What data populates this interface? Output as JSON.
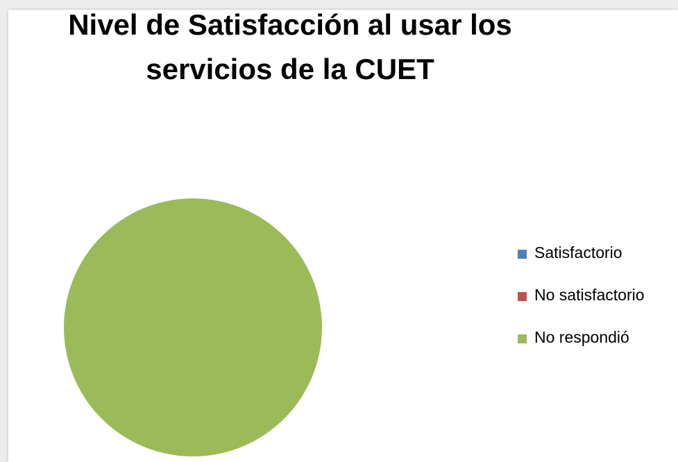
{
  "chart_data": {
    "type": "pie",
    "title": "Nivel de Satisfacción al usar los servicios de la CUET",
    "categories": [
      "Satisfactorio",
      "No satisfactorio",
      "No respondió"
    ],
    "values": [
      0,
      0,
      100
    ],
    "colors": [
      "#4f81bd",
      "#c0504d",
      "#9bbb59"
    ],
    "legend": "right"
  }
}
